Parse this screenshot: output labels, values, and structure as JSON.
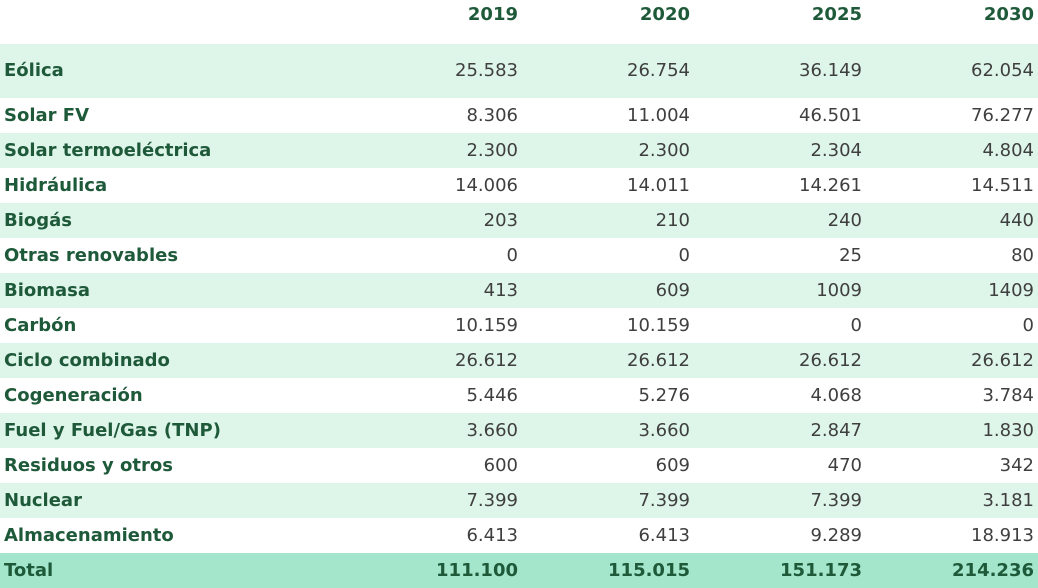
{
  "table": {
    "columns": [
      "",
      "2019",
      "2020",
      "2025",
      "2030"
    ],
    "rows": [
      {
        "label": "Eólica",
        "values": [
          "25.583",
          "26.754",
          "36.149",
          "62.054"
        ]
      },
      {
        "label": "Solar FV",
        "values": [
          "8.306",
          "11.004",
          "46.501",
          "76.277"
        ]
      },
      {
        "label": "Solar termoeléctrica",
        "values": [
          "2.300",
          "2.300",
          "2.304",
          "4.804"
        ]
      },
      {
        "label": "Hidráulica",
        "values": [
          "14.006",
          "14.011",
          "14.261",
          "14.511"
        ]
      },
      {
        "label": "Biogás",
        "values": [
          "203",
          "210",
          "240",
          "440"
        ]
      },
      {
        "label": "Otras renovables",
        "values": [
          "0",
          "0",
          "25",
          "80"
        ]
      },
      {
        "label": "Biomasa",
        "values": [
          "413",
          "609",
          "1009",
          "1409"
        ]
      },
      {
        "label": "Carbón",
        "values": [
          "10.159",
          "10.159",
          "0",
          "0"
        ]
      },
      {
        "label": "Ciclo combinado",
        "values": [
          "26.612",
          "26.612",
          "26.612",
          "26.612"
        ]
      },
      {
        "label": "Cogeneración",
        "values": [
          "5.446",
          "5.276",
          "4.068",
          "3.784"
        ]
      },
      {
        "label": "Fuel y Fuel/Gas (TNP)",
        "values": [
          "3.660",
          "3.660",
          "2.847",
          "1.830"
        ]
      },
      {
        "label": "Residuos y otros",
        "values": [
          "600",
          "609",
          "470",
          "342"
        ]
      },
      {
        "label": "Nuclear",
        "values": [
          "7.399",
          "7.399",
          "7.399",
          "3.181"
        ]
      },
      {
        "label": "Almacenamiento",
        "values": [
          "6.413",
          "6.413",
          "9.289",
          "18.913"
        ]
      }
    ],
    "total": {
      "label": "Total",
      "values": [
        "111.100",
        "115.015",
        "151.173",
        "214.236"
      ]
    }
  },
  "colors": {
    "label_text": "#1e5a3a",
    "value_text": "#3f3f3f",
    "row_shade": "#def5e9",
    "total_shade": "#a3e6cb"
  }
}
